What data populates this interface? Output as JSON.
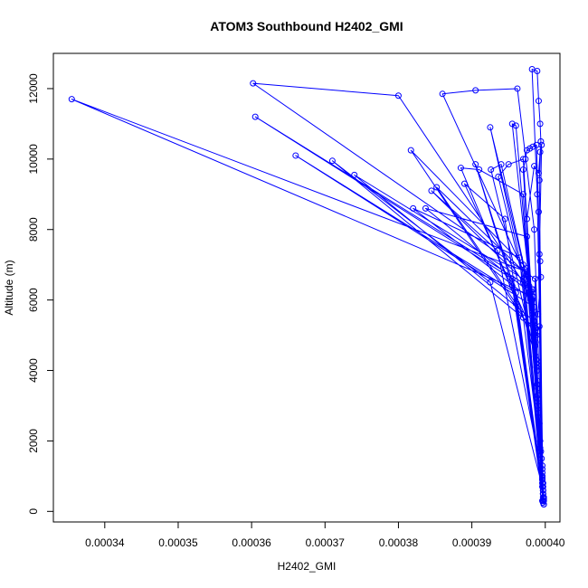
{
  "chart_data": {
    "type": "line",
    "title": "ATOM3 Southbound H2402_GMI",
    "xlabel": "H2402_GMI",
    "ylabel": "Altitude (m)",
    "xlim": [
      0.000333,
      0.000402
    ],
    "ylim": [
      -300,
      13000
    ],
    "x_ticks": [
      0.00034,
      0.00035,
      0.00036,
      0.00037,
      0.00038,
      0.00039,
      0.0004
    ],
    "x_tick_labels": [
      "0.00034",
      "0.00035",
      "0.00036",
      "0.00037",
      "0.00038",
      "0.00039",
      "0.00040"
    ],
    "y_ticks": [
      0,
      2000,
      4000,
      6000,
      8000,
      10000,
      12000
    ],
    "y_tick_labels": [
      "0",
      "2000",
      "4000",
      "6000",
      "8000",
      "10000",
      "12000"
    ],
    "grid": false,
    "series": [
      {
        "name": "H2402_GMI",
        "color": "#0000ff",
        "marker": "open-circle",
        "points": [
          [
            0.0003998,
            200
          ],
          [
            0.0003998,
            300
          ],
          [
            0.0003997,
            500
          ],
          [
            0.0003996,
            950
          ],
          [
            0.0003993,
            2000
          ],
          [
            0.000399,
            3500
          ],
          [
            0.0003988,
            5000
          ],
          [
            0.0003986,
            6600
          ],
          [
            0.0003602,
            12150
          ],
          [
            0.00038,
            11800
          ],
          [
            0.000397,
            6500
          ],
          [
            0.0003997,
            250
          ],
          [
            0.0003995,
            1500
          ],
          [
            0.000399,
            3200
          ],
          [
            0.0003987,
            4800
          ],
          [
            0.0003984,
            6300
          ],
          [
            0.0003605,
            11200
          ],
          [
            0.0003955,
            6600
          ],
          [
            0.0003998,
            350
          ],
          [
            0.0003993,
            1800
          ],
          [
            0.0003988,
            4200
          ],
          [
            0.0003983,
            6100
          ],
          [
            0.0003355,
            11700
          ],
          [
            0.0003975,
            6800
          ],
          [
            0.0003998,
            400
          ],
          [
            0.0003994,
            1700
          ],
          [
            0.0003989,
            4000
          ],
          [
            0.0003985,
            5800
          ],
          [
            0.000366,
            10100
          ],
          [
            0.000396,
            6200
          ],
          [
            0.0003997,
            600
          ],
          [
            0.0003992,
            2500
          ],
          [
            0.0003987,
            5200
          ],
          [
            0.000371,
            9950
          ],
          [
            0.0003925,
            6500
          ],
          [
            0.0003996,
            700
          ],
          [
            0.000399,
            3000
          ],
          [
            0.0003985,
            5400
          ],
          [
            0.000374,
            9550
          ],
          [
            0.000397,
            6600
          ],
          [
            0.0003997,
            800
          ],
          [
            0.000399,
            3300
          ],
          [
            0.0003982,
            6000
          ],
          [
            0.000382,
            8600
          ],
          [
            0.0003965,
            7200
          ],
          [
            0.0003996,
            900
          ],
          [
            0.0003989,
            3600
          ],
          [
            0.000398,
            6200
          ],
          [
            0.0003837,
            8600
          ],
          [
            0.0003975,
            7800
          ],
          [
            0.0003997,
            500
          ],
          [
            0.0003991,
            2800
          ],
          [
            0.0003978,
            6400
          ],
          [
            0.0003845,
            9100
          ],
          [
            0.0003935,
            7400
          ],
          [
            0.0003996,
            1000
          ],
          [
            0.0003988,
            4100
          ],
          [
            0.0003976,
            6700
          ],
          [
            0.0003852,
            9200
          ],
          [
            0.000396,
            5900
          ],
          [
            0.0003997,
            300
          ],
          [
            0.000399,
            3700
          ],
          [
            0.0003975,
            6900
          ],
          [
            0.0003817,
            10250
          ],
          [
            0.000397,
            5500
          ],
          [
            0.0003996,
            1200
          ],
          [
            0.0003985,
            5000
          ],
          [
            0.000389,
            9300
          ],
          [
            0.0003945,
            8300
          ],
          [
            0.0003997,
            600
          ],
          [
            0.0003986,
            4700
          ],
          [
            0.0003885,
            9750
          ],
          [
            0.000391,
            9700
          ],
          [
            0.000397,
            9000
          ],
          [
            0.0003996,
            800
          ],
          [
            0.0003987,
            4400
          ],
          [
            0.0003905,
            9850
          ],
          [
            0.0003955,
            6400
          ],
          [
            0.0003997,
            400
          ],
          [
            0.0003988,
            4300
          ],
          [
            0.0003926,
            9700
          ],
          [
            0.000394,
            9850
          ],
          [
            0.0003975,
            6600
          ],
          [
            0.0003996,
            1100
          ],
          [
            0.0003986,
            5200
          ],
          [
            0.0003936,
            9500
          ],
          [
            0.000395,
            9850
          ],
          [
            0.000397,
            10000
          ],
          [
            0.0003998,
            200
          ],
          [
            0.0003984,
            5400
          ],
          [
            0.0003925,
            10900
          ],
          [
            0.000397,
            7000
          ],
          [
            0.0003997,
            700
          ],
          [
            0.0003983,
            5600
          ],
          [
            0.0003955,
            11000
          ],
          [
            0.000396,
            10950
          ],
          [
            0.000398,
            6000
          ],
          [
            0.0003996,
            900
          ],
          [
            0.0003982,
            6300
          ],
          [
            0.000386,
            11850
          ],
          [
            0.0003905,
            11950
          ],
          [
            0.0003962,
            12000
          ],
          [
            0.0003985,
            8000
          ],
          [
            0.0003997,
            500
          ],
          [
            0.0003989,
            9000
          ],
          [
            0.0003982,
            12550
          ],
          [
            0.0003989,
            12500
          ],
          [
            0.0003991,
            11650
          ],
          [
            0.0003993,
            11000
          ],
          [
            0.0003994,
            10500
          ],
          [
            0.0003992,
            9400
          ],
          [
            0.0003996,
            1300
          ],
          [
            0.0003991,
            8500
          ],
          [
            0.0003988,
            10400
          ],
          [
            0.0003983,
            10350
          ],
          [
            0.0003979,
            10300
          ],
          [
            0.0003975,
            10250
          ],
          [
            0.0003973,
            10000
          ],
          [
            0.000397,
            9700
          ],
          [
            0.0003997,
            600
          ],
          [
            0.0003992,
            7300
          ],
          [
            0.0003995,
            10400
          ],
          [
            0.0003993,
            10200
          ],
          [
            0.0003991,
            9600
          ],
          [
            0.0003985,
            9800
          ],
          [
            0.0003975,
            8300
          ],
          [
            0.0003996,
            1000
          ],
          [
            0.0003993,
            7100
          ],
          [
            0.0003994,
            6650
          ],
          [
            0.000399,
            5600
          ],
          [
            0.0003985,
            4800
          ],
          [
            0.0003992,
            5250
          ],
          [
            0.0003996,
            300
          ]
        ]
      }
    ]
  }
}
